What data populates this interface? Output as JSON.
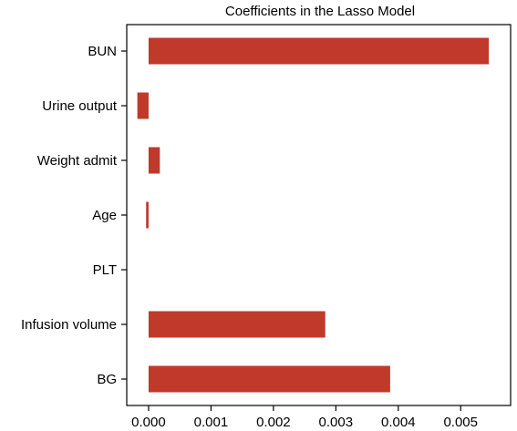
{
  "chart_data": {
    "type": "bar",
    "orientation": "horizontal",
    "title": "Coefficients in the Lasso Model",
    "xlabel": "",
    "ylabel": "",
    "categories": [
      "BUN",
      "Urine output",
      "Weight admit",
      "Age",
      "PLT",
      "Infusion volume",
      "BG"
    ],
    "values": [
      0.00545,
      -0.00018,
      0.00018,
      -4e-05,
      0.0,
      0.00283,
      0.00387
    ],
    "xlim": [
      -0.00035,
      0.0058
    ],
    "xticks": [
      0.0,
      0.001,
      0.002,
      0.003,
      0.004,
      0.005
    ],
    "xtick_labels": [
      "0.000",
      "0.001",
      "0.002",
      "0.003",
      "0.004",
      "0.005"
    ],
    "grid": false,
    "bar_color": "#c0392b"
  }
}
